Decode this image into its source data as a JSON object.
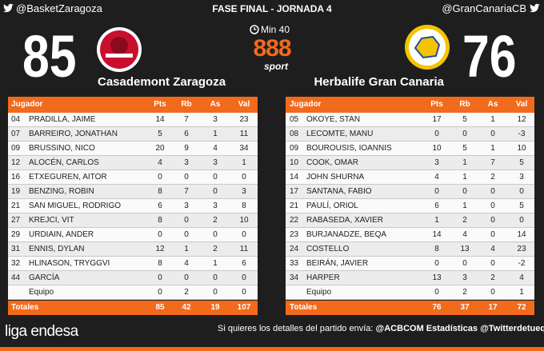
{
  "header": {
    "left_handle": "@BasketZaragoza",
    "title": "FASE FINAL - JORNADA 4",
    "right_handle": "@GranCanariaCB",
    "minute": "Min 40",
    "sponsor": "888",
    "sponsor_sub": "sport"
  },
  "home": {
    "score": 85,
    "name": "Casademont Zaragoza"
  },
  "away": {
    "score": 76,
    "name": "Herbalife Gran Canaria"
  },
  "tables": [
    {
      "columns": [
        "Jugador",
        "Pts",
        "Rb",
        "As",
        "Val"
      ],
      "rows": [
        [
          "04",
          "PRADILLA, JAIME",
          14,
          7,
          3,
          23
        ],
        [
          "07",
          "BARREIRO, JONATHAN",
          5,
          6,
          1,
          11
        ],
        [
          "09",
          "BRUSSINO, NICO",
          20,
          9,
          4,
          34
        ],
        [
          "12",
          "ALOCÉN, CARLOS",
          4,
          3,
          3,
          1
        ],
        [
          "16",
          "ETXEGUREN, AITOR",
          0,
          0,
          0,
          0
        ],
        [
          "19",
          "BENZING, ROBIN",
          8,
          7,
          0,
          3
        ],
        [
          "21",
          "SAN MIGUEL, RODRIGO",
          6,
          3,
          3,
          8
        ],
        [
          "27",
          "KREJCI, VIT",
          8,
          0,
          2,
          10
        ],
        [
          "29",
          "URDIAIN, ANDER",
          0,
          0,
          0,
          0
        ],
        [
          "31",
          "ENNIS, DYLAN",
          12,
          1,
          2,
          11
        ],
        [
          "32",
          "HLINASON, TRYGGVI",
          8,
          4,
          1,
          6
        ],
        [
          "44",
          "GARCÍA",
          0,
          0,
          0,
          0
        ],
        [
          null,
          "Equipo",
          0,
          2,
          0,
          0
        ]
      ],
      "totals": [
        "Totales",
        85,
        42,
        19,
        107
      ]
    },
    {
      "columns": [
        "Jugador",
        "Pts",
        "Rb",
        "As",
        "Val"
      ],
      "rows": [
        [
          "05",
          "OKOYE, STAN",
          17,
          5,
          1,
          12
        ],
        [
          "08",
          "LECOMTE, MANU",
          0,
          0,
          0,
          -3
        ],
        [
          "09",
          "BOUROUSIS, IOANNIS",
          10,
          5,
          1,
          10
        ],
        [
          "10",
          "COOK, OMAR",
          3,
          1,
          7,
          5
        ],
        [
          "14",
          "JOHN SHURNA",
          4,
          1,
          2,
          3
        ],
        [
          "17",
          "SANTANA, FABIO",
          0,
          0,
          0,
          0
        ],
        [
          "21",
          "PAULÍ, ORIOL",
          6,
          1,
          0,
          5
        ],
        [
          "22",
          "RABASEDA, XAVIER",
          1,
          2,
          0,
          0
        ],
        [
          "23",
          "BURJANADZE, BEQA",
          14,
          4,
          0,
          14
        ],
        [
          "24",
          "COSTELLO",
          8,
          13,
          4,
          23
        ],
        [
          "33",
          "BEIRÁN, JAVIER",
          0,
          0,
          0,
          -2
        ],
        [
          "34",
          "HARPER",
          13,
          3,
          2,
          4
        ],
        [
          null,
          "Equipo",
          0,
          2,
          0,
          1
        ]
      ],
      "totals": [
        "Totales",
        76,
        37,
        17,
        72
      ]
    }
  ],
  "footer": {
    "logo": "liga endesa",
    "message": "Si quieres los detalles del partido envía:",
    "contact1": "@ACBCOM Estadísticas",
    "contact2": "@Twitterdetuequipo"
  }
}
